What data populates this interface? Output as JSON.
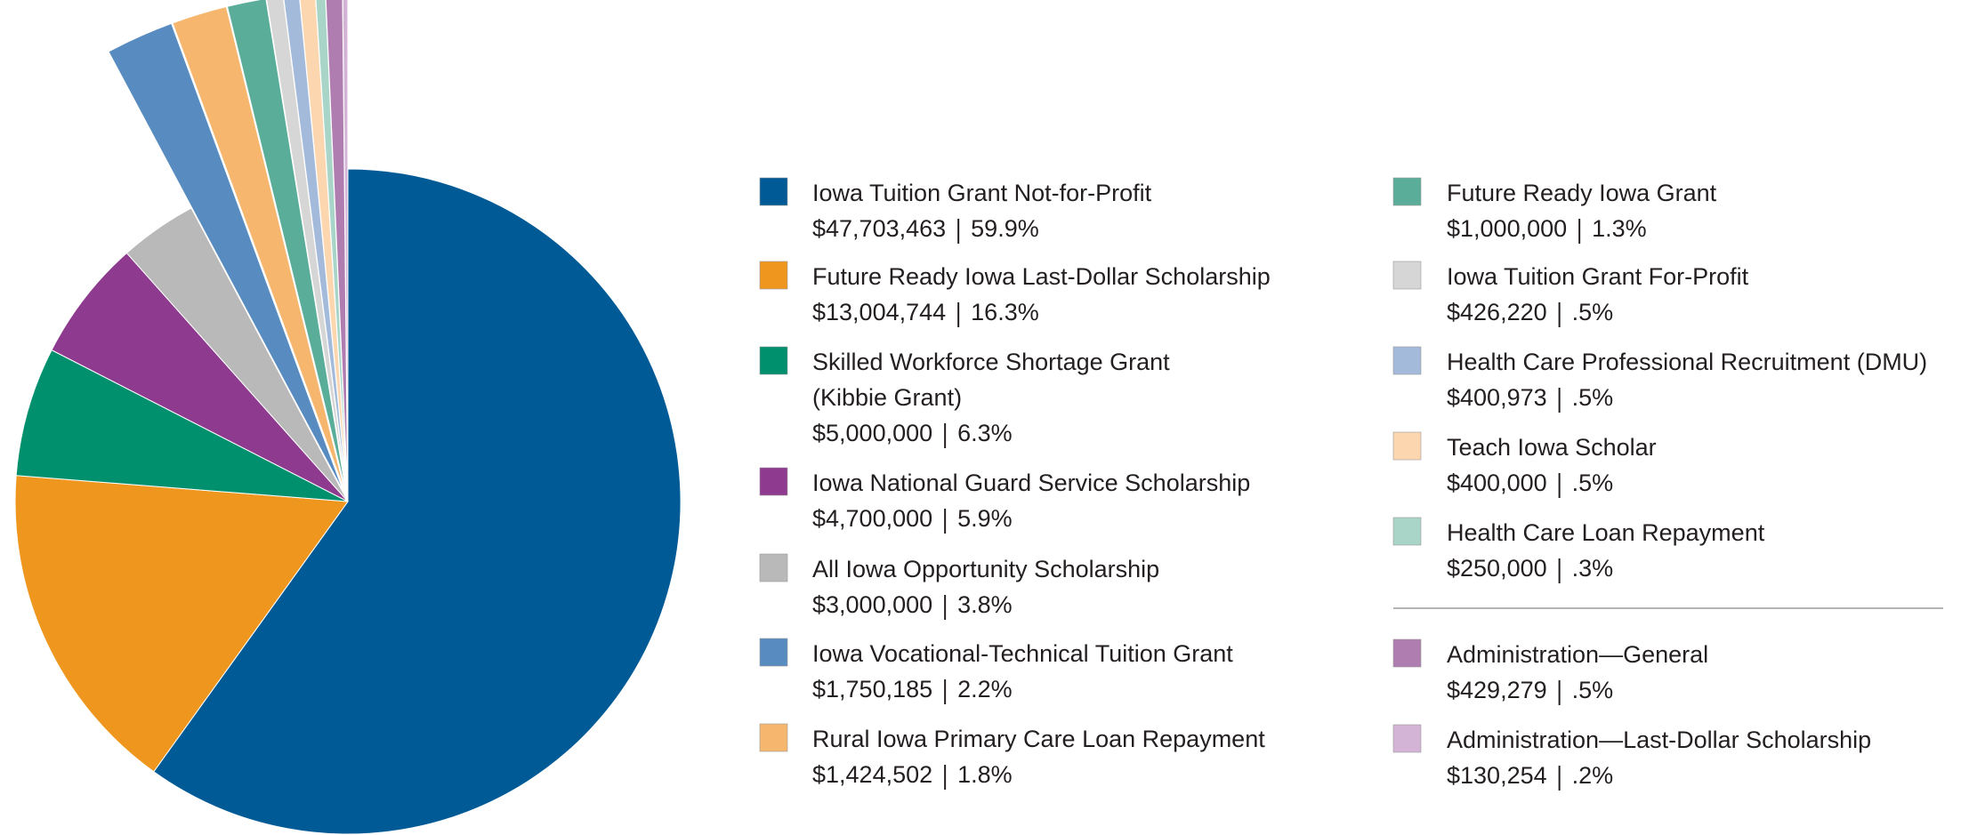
{
  "chart_data": {
    "type": "pie",
    "categories": [
      "Iowa Tuition Grant Not-for-Profit",
      "Future Ready Iowa Last-Dollar Scholarship",
      "Skilled Workforce Shortage Grant\n(Kibbie Grant)",
      "Iowa National Guard Service Scholarship",
      "All Iowa Opportunity Scholarship",
      "Iowa Vocational-Technical Tuition Grant",
      "Rural Iowa Primary Care Loan Repayment",
      "Future Ready Iowa Grant",
      "Iowa Tuition Grant For-Profit",
      "Health Care Professional Recruitment (DMU)",
      "Teach Iowa Scholar",
      "Health Care Loan Repayment",
      "Administration—General",
      "Administration—Last-Dollar Scholarship"
    ],
    "values": [
      47703463,
      13004744,
      5000000,
      4700000,
      3000000,
      1750185,
      1424502,
      1000000,
      426220,
      400973,
      400000,
      250000,
      429279,
      130254
    ],
    "value_labels": [
      "$47,703,463",
      "$13,004,744",
      "$5,000,000",
      "$4,700,000",
      "$3,000,000",
      "$1,750,185",
      "$1,424,502",
      "$1,000,000",
      "$426,220",
      "$400,973",
      "$400,000",
      "$250,000",
      "$429,279",
      "$130,254"
    ],
    "percent_labels": [
      "59.9%",
      "16.3%",
      "6.3%",
      "5.9%",
      "3.8%",
      "2.2%",
      "1.8%",
      "1.3%",
      ".5%",
      ".5%",
      ".5%",
      ".3%",
      ".5%",
      ".2%"
    ],
    "colors": [
      "#005a96",
      "#ee961e",
      "#00906e",
      "#8e3a8e",
      "#b9b9b9",
      "#588cc0",
      "#f6b66e",
      "#5aae99",
      "#d6d6d6",
      "#a3bada",
      "#fbd6ae",
      "#a9d5c8",
      "#b07db0",
      "#d4b4d6"
    ],
    "explode": [
      false,
      false,
      false,
      false,
      false,
      true,
      true,
      true,
      true,
      true,
      true,
      true,
      true,
      true
    ]
  }
}
